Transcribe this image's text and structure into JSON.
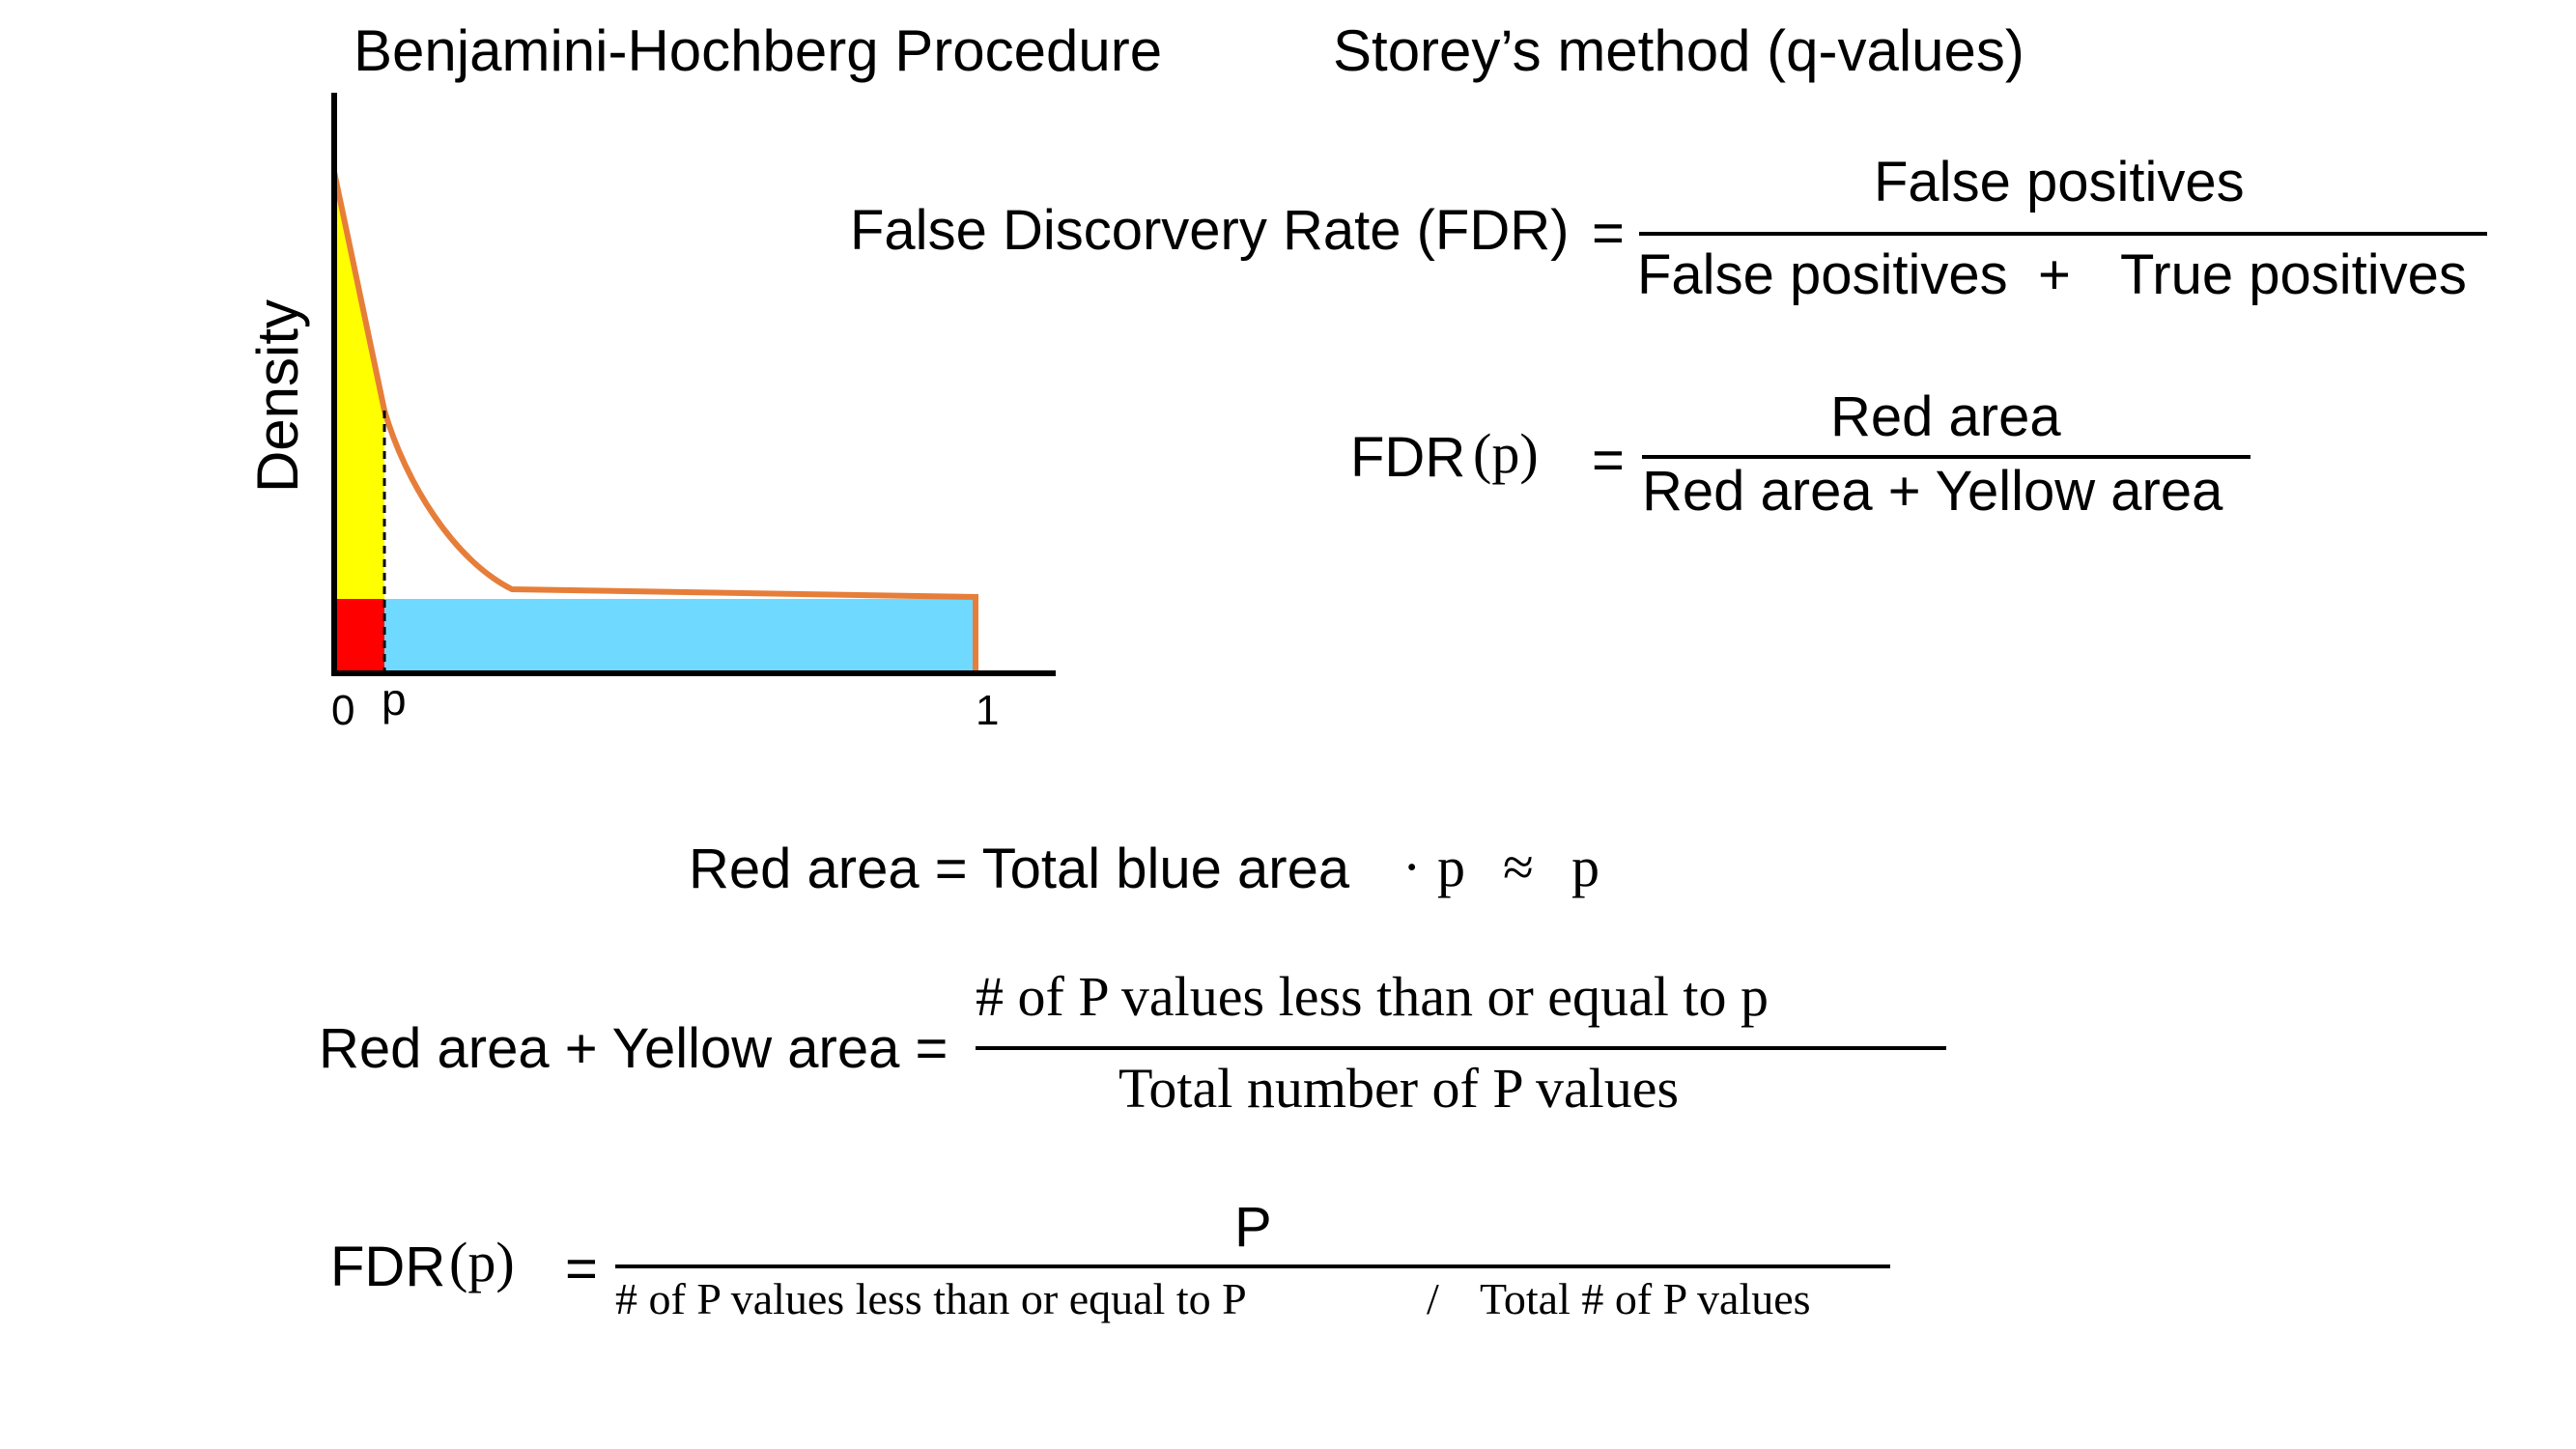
{
  "titles": {
    "left": "Benjamini-Hochberg Procedure",
    "right": "Storey’s method (q-values)"
  },
  "plot": {
    "ylabel": "Density",
    "x_tick_0": "0",
    "x_tick_p": "p",
    "x_tick_1": "1",
    "colors": {
      "red_region": "#ff0000",
      "yellow_region": "#ffff00",
      "blue_region": "#6fd9ff",
      "density_curve": "#e67e3a",
      "axes": "#000000"
    }
  },
  "fdr_definition": {
    "lhs": "False Discorvery Rate (FDR)",
    "equals": "=",
    "numerator": "False positives",
    "denominator_a": "False positives",
    "plus": "+",
    "denominator_b": "True positives"
  },
  "fdr_area": {
    "lhs_text": "FDR",
    "lhs_arg": "(p)",
    "equals": "=",
    "numerator": "Red area",
    "denominator": "Red area + Yellow area"
  },
  "red_area_eq": {
    "text": "Red area = Total blue area",
    "dot": "·",
    "p1": "p",
    "approx": "≈",
    "p2": "p"
  },
  "red_yellow_eq": {
    "lhs": "Red area + Yellow area =",
    "numerator": "# of P values less than or equal to p",
    "denominator": "Total number of P values"
  },
  "fdr_final": {
    "lhs_text": "FDR",
    "lhs_arg": "(p)",
    "equals": "=",
    "numerator": "P",
    "denominator_a": "# of P values less than or equal to P",
    "slash": "/",
    "denominator_b": "Total # of P values"
  }
}
